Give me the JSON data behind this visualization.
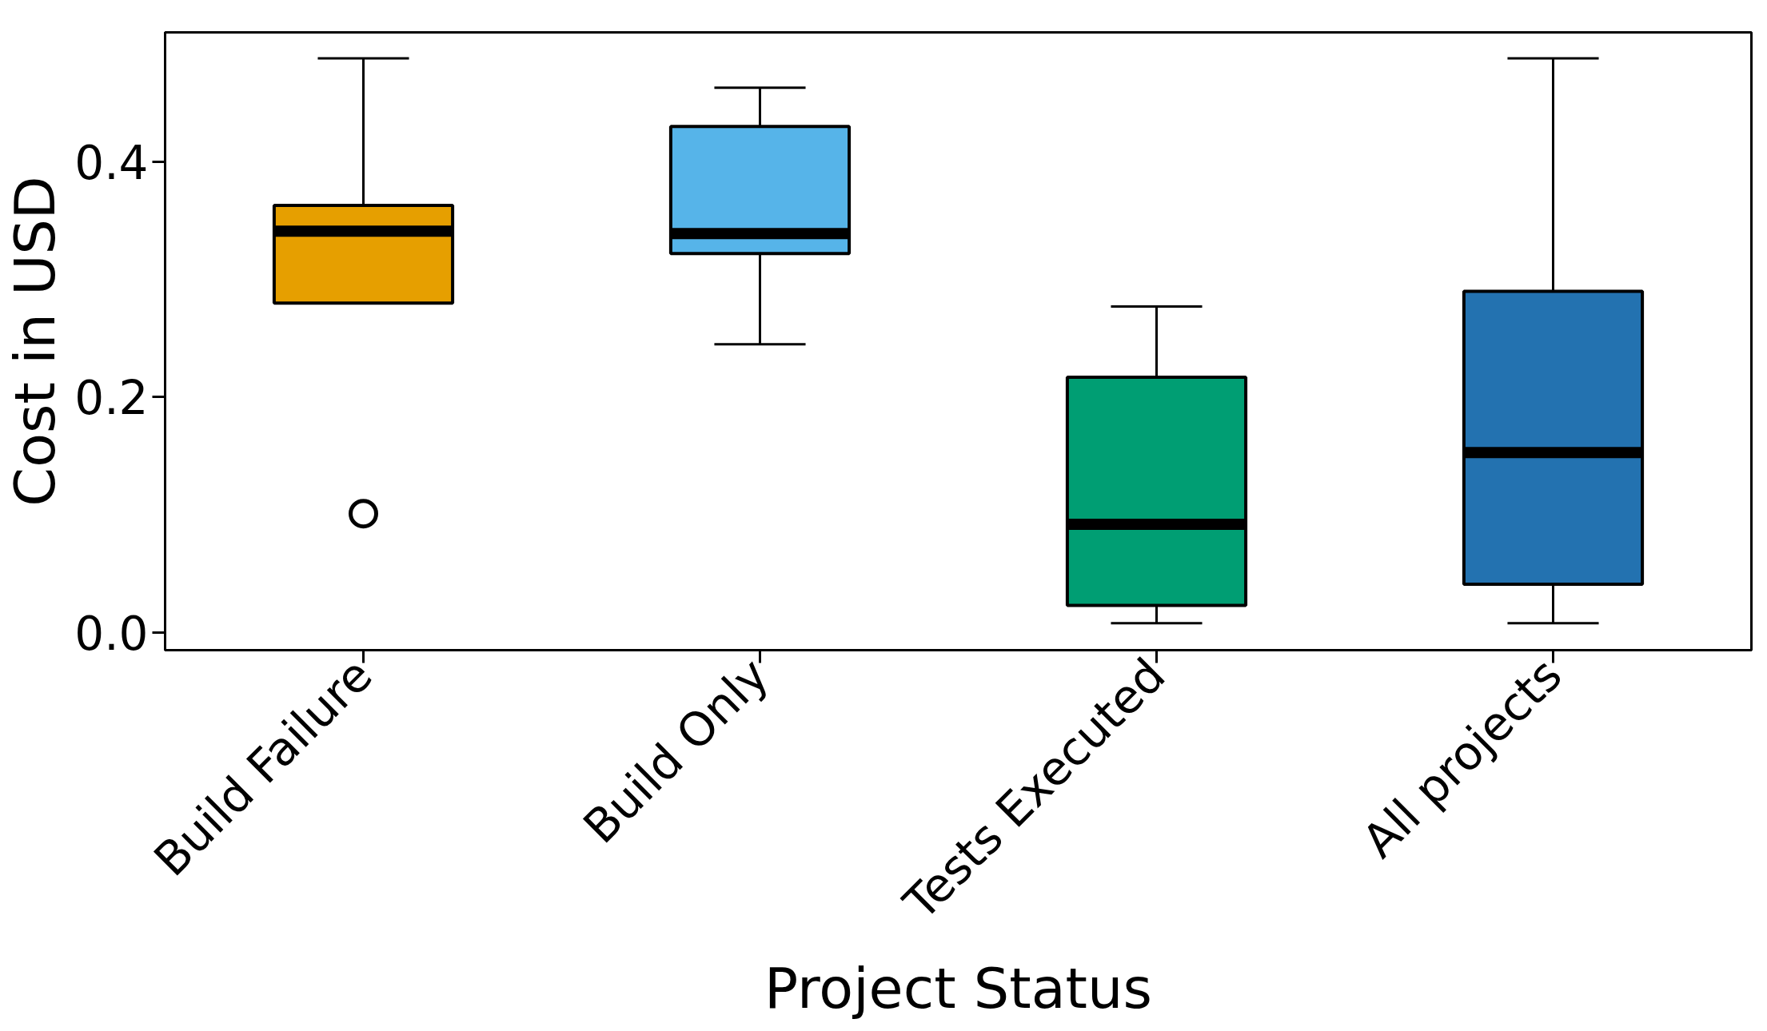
{
  "chart_data": {
    "type": "box",
    "xlabel": "Project Status",
    "ylabel": "Cost in USD",
    "categories": [
      "Build Failure",
      "Build Only",
      "Tests Executed",
      "All projects"
    ],
    "boxes": [
      {
        "low": 0.28,
        "q1": 0.28,
        "median": 0.341,
        "q3": 0.363,
        "high": 0.488,
        "outliers": [
          0.101
        ]
      },
      {
        "low": 0.245,
        "q1": 0.322,
        "median": 0.339,
        "q3": 0.43,
        "high": 0.463
      },
      {
        "low": 0.008,
        "q1": 0.023,
        "median": 0.092,
        "q3": 0.217,
        "high": 0.277
      },
      {
        "low": 0.008,
        "q1": 0.041,
        "median": 0.153,
        "q3": 0.29,
        "high": 0.488
      }
    ],
    "colors": [
      "#e69f00",
      "#56b4e9",
      "#009e73",
      "#2372b0"
    ],
    "ylim": [
      -0.015,
      0.51
    ],
    "yticks": [
      {
        "value": 0,
        "label": "0.0"
      },
      {
        "value": 0.2,
        "label": "0.2"
      },
      {
        "value": 0.4,
        "label": "0.4"
      }
    ]
  }
}
